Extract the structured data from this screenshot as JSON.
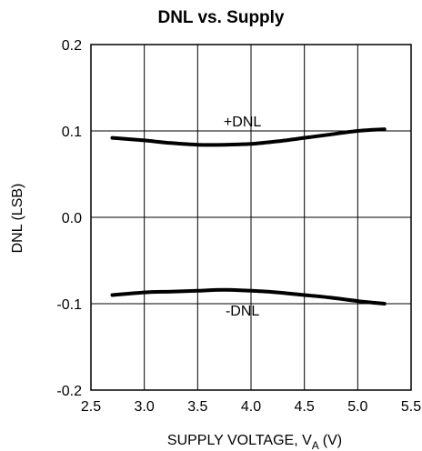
{
  "chart_data": {
    "type": "line",
    "title": "DNL vs. Supply",
    "xlabel": "SUPPLY VOLTAGE, V",
    "xlabel_subscript": "A",
    "xlabel_unit": "(V)",
    "ylabel": "DNL (LSB)",
    "xlim": [
      2.5,
      5.5
    ],
    "ylim": [
      -0.2,
      0.2
    ],
    "xticks": [
      "2.5",
      "3.0",
      "3.5",
      "4.0",
      "4.5",
      "5.0",
      "5.5"
    ],
    "yticks": [
      "0.2",
      "0.1",
      "0.0",
      "-0.1",
      "-0.2"
    ],
    "grid": true,
    "legend": "none",
    "series": [
      {
        "name": "+DNL",
        "x": [
          2.7,
          3.0,
          3.25,
          3.5,
          3.75,
          4.0,
          4.25,
          4.5,
          4.75,
          5.0,
          5.25
        ],
        "y": [
          0.092,
          0.089,
          0.086,
          0.084,
          0.084,
          0.085,
          0.088,
          0.092,
          0.096,
          0.1,
          0.102
        ]
      },
      {
        "name": "-DNL",
        "x": [
          2.7,
          3.0,
          3.25,
          3.5,
          3.75,
          4.0,
          4.25,
          4.5,
          4.75,
          5.0,
          5.25
        ],
        "y": [
          -0.09,
          -0.087,
          -0.086,
          -0.085,
          -0.084,
          -0.085,
          -0.087,
          -0.09,
          -0.093,
          -0.097,
          -0.1
        ]
      }
    ]
  }
}
